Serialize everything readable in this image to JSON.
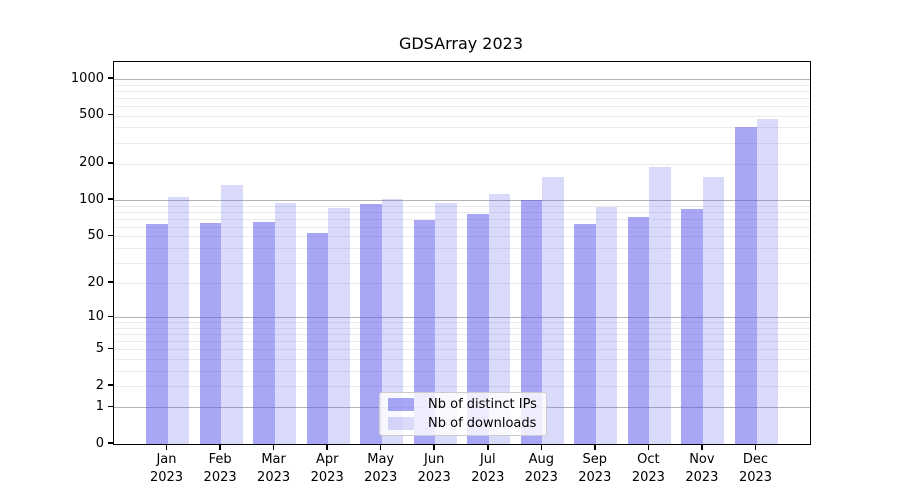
{
  "title": "GDSArray 2023",
  "chart_data": {
    "type": "bar",
    "yscale": "log1p",
    "grid": "on",
    "legend_position": "lower center",
    "categories": [
      "Jan",
      "Feb",
      "Mar",
      "Apr",
      "May",
      "Jun",
      "Jul",
      "Aug",
      "Sep",
      "Oct",
      "Nov",
      "Dec"
    ],
    "year_label": "2023",
    "series": [
      {
        "name": "Nb of distinct IPs",
        "color": "rgba(88,88,236,0.53)",
        "values": [
          63,
          65,
          66,
          53,
          93,
          68,
          77,
          100,
          64,
          72,
          84,
          400
        ]
      },
      {
        "name": "Nb of downloads",
        "color": "rgba(88,88,236,0.22)",
        "values": [
          106,
          133,
          94,
          86,
          103,
          95,
          113,
          155,
          88,
          190,
          157,
          470
        ]
      }
    ],
    "ytick_labels": [
      "0",
      "1",
      "2",
      "5",
      "10",
      "20",
      "50",
      "100",
      "200",
      "500",
      "1000"
    ],
    "ytick_values": [
      0,
      1,
      2,
      5,
      10,
      20,
      50,
      100,
      200,
      500,
      1000
    ],
    "ylim": [
      0,
      1400
    ]
  },
  "colors": {
    "major_grid": "#b3b3b3",
    "minor_grid": "#ebebeb",
    "axis": "#000000",
    "background": "#ffffff"
  }
}
